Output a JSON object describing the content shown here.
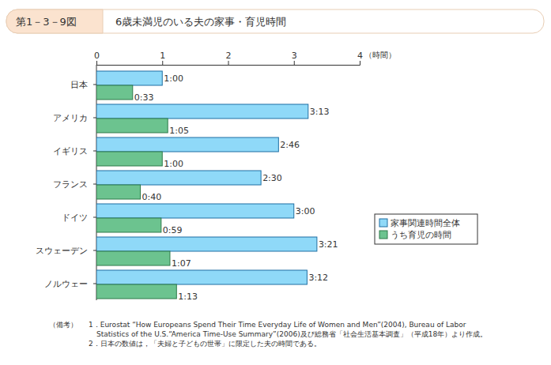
{
  "chart_data": {
    "type": "bar",
    "orientation": "horizontal",
    "figure_number": "第1－3－9図",
    "title": "6歳未満児のいる夫の家事・育児時間",
    "categories": [
      "日本",
      "アメリカ",
      "イギリス",
      "フランス",
      "ドイツ",
      "スウェーデン",
      "ノルウェー"
    ],
    "series": [
      {
        "name": "家事関連時間全体",
        "color": "#8fd9f8",
        "values": [
          1.0,
          3.2167,
          2.7667,
          2.5,
          3.0,
          3.35,
          3.2
        ],
        "value_labels": [
          "1:00",
          "3:13",
          "2:46",
          "2:30",
          "3:00",
          "3:21",
          "3:12"
        ]
      },
      {
        "name": "うち育児の時間",
        "color": "#6cc38f",
        "values": [
          0.55,
          1.0833,
          1.0,
          0.6667,
          0.9833,
          1.1167,
          1.2167
        ],
        "value_labels": [
          "0:33",
          "1:05",
          "1:00",
          "0:40",
          "0:59",
          "1:07",
          "1:13"
        ]
      }
    ],
    "xlim": [
      0,
      4
    ],
    "xticks": [
      0,
      1,
      2,
      3,
      4
    ],
    "x_label": "（時間）",
    "grid": false,
    "legend": "right",
    "data_labels": true,
    "notes_label": "（備考）",
    "notes": [
      [
        "1．Eurostat “How Europeans Spend Their Time Everyday Life of Women and Men”(2004), Bureau of Labor",
        "Statistics of the U.S.“America Time-Use Summary”(2006)及び総務省「社会生活基本調査」（平成18年）より作成。"
      ],
      [
        "2．日本の数値は，「夫婦と子どもの世帯」に限定した夫の時間である。"
      ]
    ]
  }
}
